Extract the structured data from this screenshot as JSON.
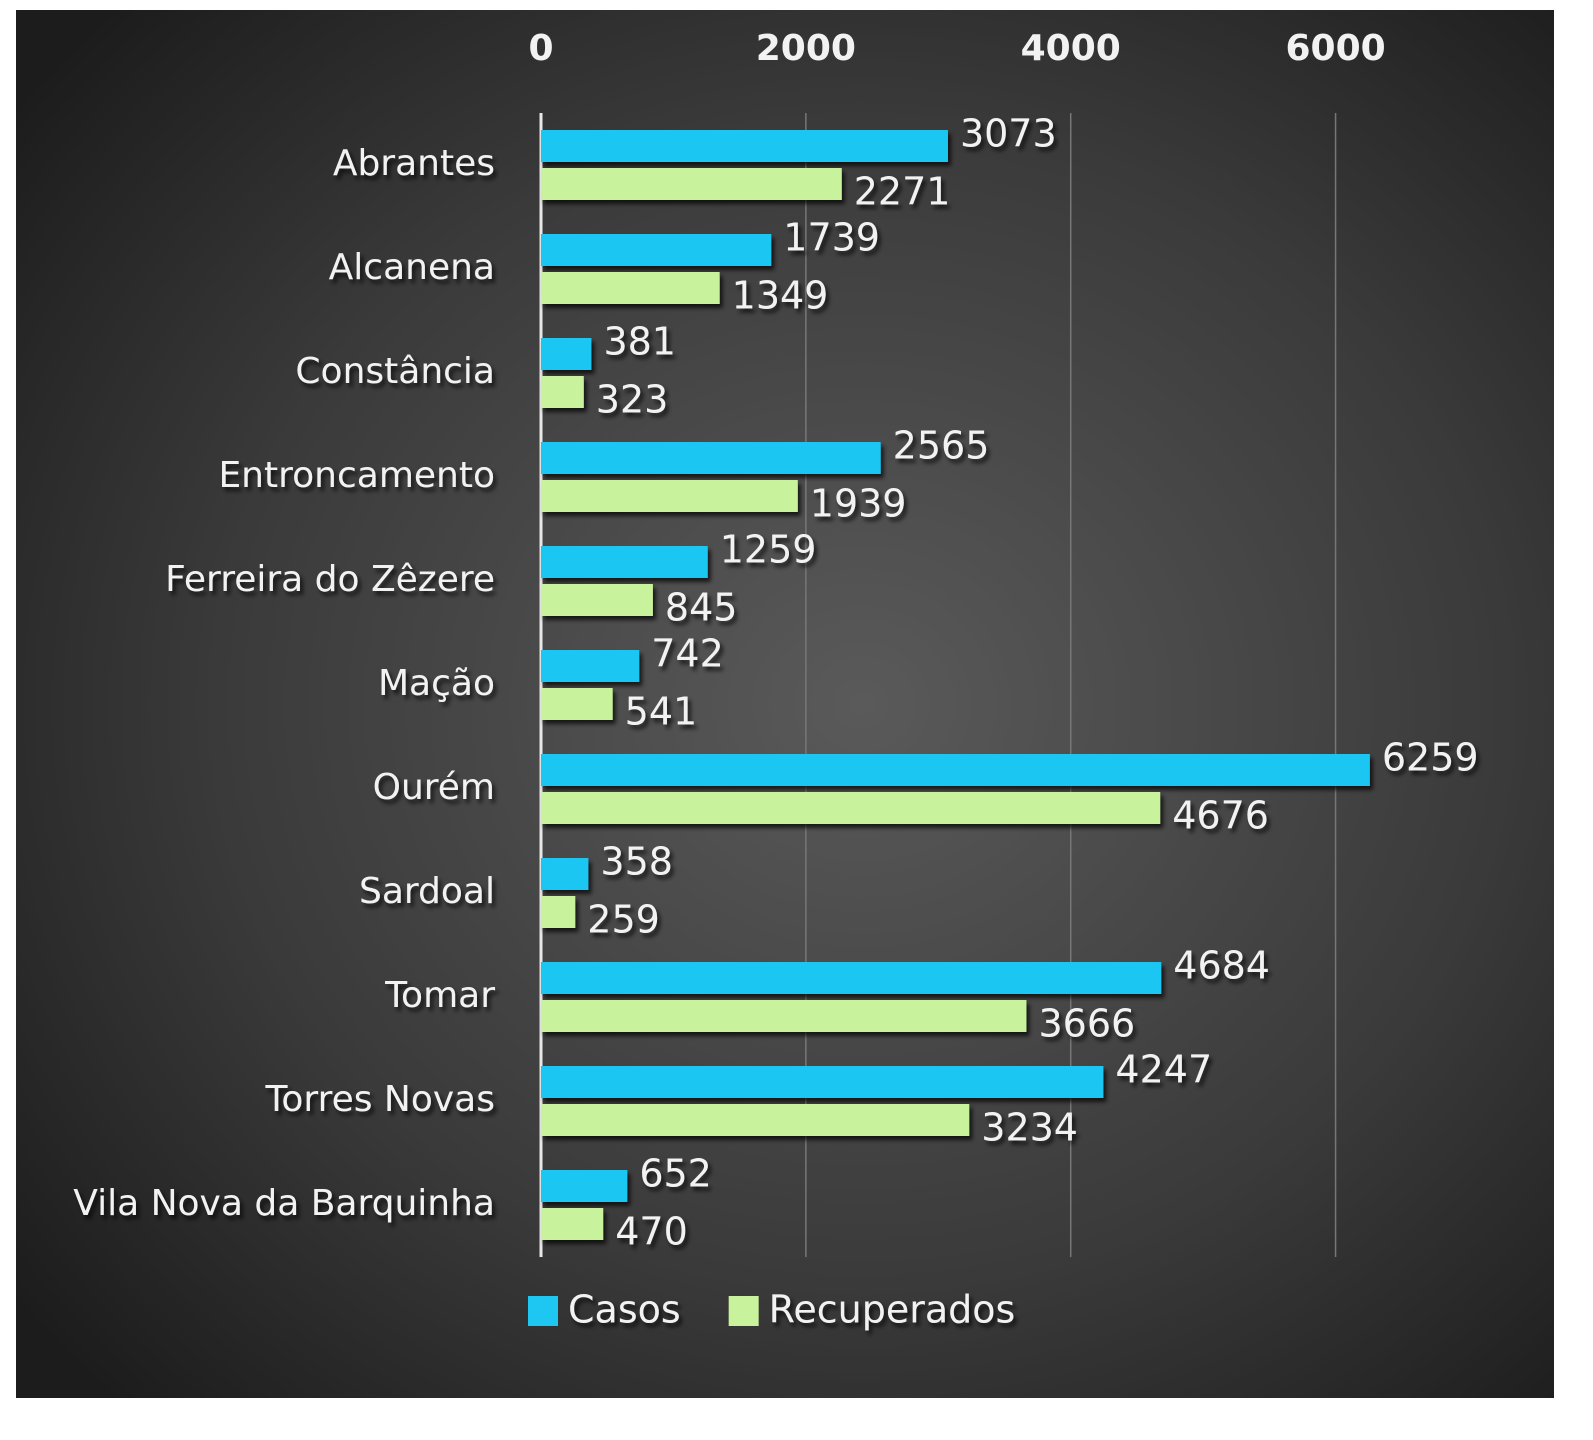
{
  "chart_data": {
    "type": "hbar",
    "categories": [
      "Abrantes",
      "Alcanena",
      "Constância",
      "Entroncamento",
      "Ferreira do Zêzere",
      "Mação",
      "Ourém",
      "Sardoal",
      "Tomar",
      "Torres Novas",
      "Vila Nova da Barquinha"
    ],
    "series": [
      {
        "name": "Casos",
        "color": "#1ec6f2",
        "values": [
          3073,
          1739,
          381,
          2565,
          1259,
          742,
          6259,
          358,
          4684,
          4247,
          652
        ]
      },
      {
        "name": "Recuperados",
        "color": "#c8f29c",
        "values": [
          2271,
          1349,
          323,
          1939,
          845,
          541,
          4676,
          259,
          3666,
          3234,
          470
        ]
      }
    ],
    "xlim": [
      0,
      7000
    ],
    "xticks": [
      0,
      2000,
      4000,
      6000
    ],
    "grid": true,
    "legend": "bottom"
  }
}
